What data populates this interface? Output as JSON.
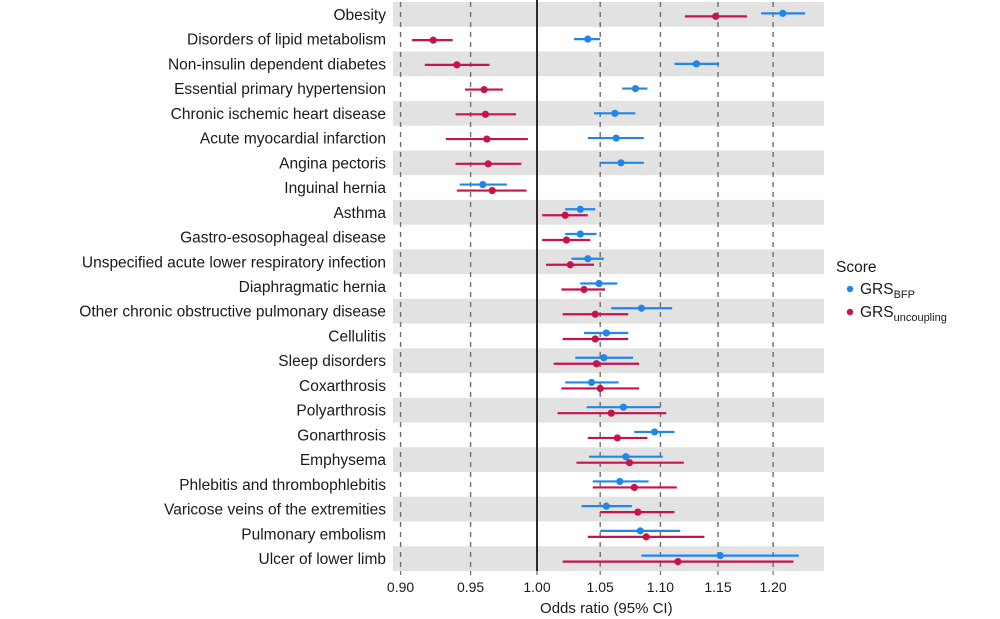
{
  "chart_data": {
    "type": "forest",
    "scale": "log",
    "title": "",
    "xlabel": "Odds ratio (95% CI)",
    "ylabel": "",
    "xlim": [
      0.9,
      1.235
    ],
    "xticks": [
      0.9,
      0.95,
      1.0,
      1.05,
      1.1,
      1.15,
      1.2
    ],
    "xtick_labels": [
      "0.90",
      "0.95",
      "1.00",
      "1.05",
      "1.10",
      "1.15",
      "1.20"
    ],
    "reference_line": 1.0,
    "grid": "vertical dashed at ticks",
    "row_banding": "alternating grey, starting with first row",
    "legend": {
      "title": "Score",
      "placement": "right",
      "entries": [
        {
          "key": "bfp",
          "base": "GRS",
          "sub": "BFP",
          "color": "#2186eb"
        },
        {
          "key": "uncoupling",
          "base": "GRS",
          "sub": "uncoupling",
          "color": "#c8124c"
        }
      ]
    },
    "categories": [
      "Obesity",
      "Disorders of lipid metabolism",
      "Non-insulin dependent diabetes",
      "Essential primary hypertension",
      "Chronic ischemic heart disease",
      "Acute myocardial infarction",
      "Angina pectoris",
      "Inguinal hernia",
      "Asthma",
      "Gastro-esosophageal disease",
      "Unspecified acute lower respiratory infection",
      "Diaphragmatic hernia",
      "Other chronic obstructive pulmonary disease",
      "Cellulitis",
      "Sleep disorders",
      "Coxarthrosis",
      "Polyarthrosis",
      "Gonarthrosis",
      "Emphysema",
      "Phlebitis and thrombophlebitis",
      "Varicose veins of the extremities",
      "Pulmonary embolism",
      "Ulcer of lower limb"
    ],
    "series": [
      {
        "name": "GRS_BFP",
        "key": "bfp",
        "color": "#2186eb",
        "points": [
          {
            "or": 1.209,
            "lo": 1.189,
            "hi": 1.23
          },
          {
            "or": 1.04,
            "lo": 1.029,
            "hi": 1.05
          },
          {
            "or": 1.131,
            "lo": 1.112,
            "hi": 1.151
          },
          {
            "or": 1.079,
            "lo": 1.068,
            "hi": 1.089
          },
          {
            "or": 1.062,
            "lo": 1.045,
            "hi": 1.079
          },
          {
            "or": 1.063,
            "lo": 1.04,
            "hi": 1.086
          },
          {
            "or": 1.067,
            "lo": 1.05,
            "hi": 1.086
          },
          {
            "or": 0.959,
            "lo": 0.942,
            "hi": 0.977
          },
          {
            "or": 1.034,
            "lo": 1.022,
            "hi": 1.046
          },
          {
            "or": 1.034,
            "lo": 1.022,
            "hi": 1.047
          },
          {
            "or": 1.04,
            "lo": 1.027,
            "hi": 1.053
          },
          {
            "or": 1.049,
            "lo": 1.034,
            "hi": 1.064
          },
          {
            "or": 1.084,
            "lo": 1.059,
            "hi": 1.11
          },
          {
            "or": 1.055,
            "lo": 1.037,
            "hi": 1.073
          },
          {
            "or": 1.053,
            "lo": 1.03,
            "hi": 1.077
          },
          {
            "or": 1.043,
            "lo": 1.022,
            "hi": 1.065
          },
          {
            "or": 1.069,
            "lo": 1.039,
            "hi": 1.1
          },
          {
            "or": 1.095,
            "lo": 1.078,
            "hi": 1.112
          },
          {
            "or": 1.071,
            "lo": 1.041,
            "hi": 1.102
          },
          {
            "or": 1.066,
            "lo": 1.044,
            "hi": 1.09
          },
          {
            "or": 1.055,
            "lo": 1.035,
            "hi": 1.076
          },
          {
            "or": 1.083,
            "lo": 1.05,
            "hi": 1.117
          },
          {
            "or": 1.152,
            "lo": 1.084,
            "hi": 1.224
          }
        ]
      },
      {
        "name": "GRS_uncoupling",
        "key": "uncoupling",
        "color": "#c8124c",
        "points": [
          {
            "or": 1.148,
            "lo": 1.121,
            "hi": 1.176
          },
          {
            "or": 0.923,
            "lo": 0.908,
            "hi": 0.937
          },
          {
            "or": 0.94,
            "lo": 0.917,
            "hi": 0.964
          },
          {
            "or": 0.96,
            "lo": 0.946,
            "hi": 0.974
          },
          {
            "or": 0.961,
            "lo": 0.939,
            "hi": 0.984
          },
          {
            "or": 0.962,
            "lo": 0.932,
            "hi": 0.993
          },
          {
            "or": 0.963,
            "lo": 0.939,
            "hi": 0.988
          },
          {
            "or": 0.966,
            "lo": 0.94,
            "hi": 0.992
          },
          {
            "or": 1.022,
            "lo": 1.004,
            "hi": 1.04
          },
          {
            "or": 1.023,
            "lo": 1.004,
            "hi": 1.042
          },
          {
            "or": 1.026,
            "lo": 1.007,
            "hi": 1.045
          },
          {
            "or": 1.037,
            "lo": 1.019,
            "hi": 1.054
          },
          {
            "or": 1.046,
            "lo": 1.02,
            "hi": 1.073
          },
          {
            "or": 1.046,
            "lo": 1.02,
            "hi": 1.073
          },
          {
            "or": 1.047,
            "lo": 1.013,
            "hi": 1.082
          },
          {
            "or": 1.05,
            "lo": 1.019,
            "hi": 1.082
          },
          {
            "or": 1.059,
            "lo": 1.016,
            "hi": 1.105
          },
          {
            "or": 1.064,
            "lo": 1.04,
            "hi": 1.089
          },
          {
            "or": 1.074,
            "lo": 1.031,
            "hi": 1.12
          },
          {
            "or": 1.078,
            "lo": 1.044,
            "hi": 1.114
          },
          {
            "or": 1.081,
            "lo": 1.05,
            "hi": 1.112
          },
          {
            "or": 1.088,
            "lo": 1.04,
            "hi": 1.138
          },
          {
            "or": 1.115,
            "lo": 1.02,
            "hi": 1.219
          }
        ]
      }
    ],
    "single_series_rows": {
      "0": "both",
      "1": "both",
      "2": "both",
      "3": "both",
      "4": "both",
      "5": "both",
      "6": "both"
    }
  }
}
